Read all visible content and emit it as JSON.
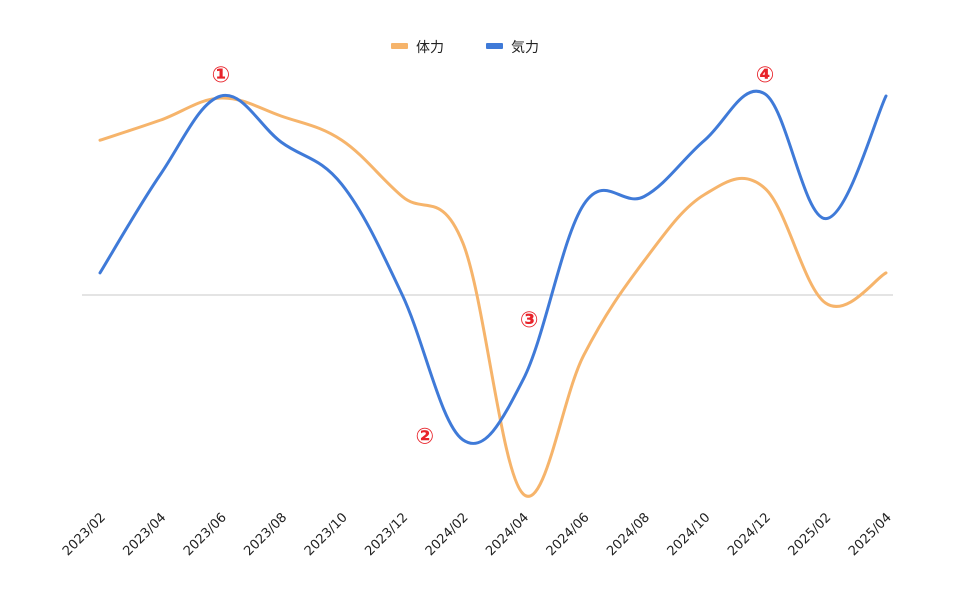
{
  "chart_data": {
    "type": "line",
    "title": "",
    "xlabel": "",
    "ylabel": "",
    "legend_position": "top-center",
    "grid": false,
    "baseline_value": 0,
    "ylim": [
      -1.0,
      1.0
    ],
    "x": [
      "2023/02",
      "2023/04",
      "2023/06",
      "2023/08",
      "2023/10",
      "2023/12",
      "2024/02",
      "2024/04",
      "2024/06",
      "2024/08",
      "2024/10",
      "2024/12",
      "2025/02",
      "2025/04"
    ],
    "series": [
      {
        "name": "体力",
        "color": "#f6b46b",
        "values": [
          0.77,
          0.87,
          0.98,
          0.89,
          0.77,
          0.49,
          0.26,
          -0.99,
          -0.3,
          0.17,
          0.5,
          0.53,
          -0.04,
          0.11
        ]
      },
      {
        "name": "気力",
        "color": "#3f7ad8",
        "values": [
          0.11,
          0.6,
          0.99,
          0.76,
          0.55,
          0.0,
          -0.72,
          -0.42,
          0.45,
          0.49,
          0.77,
          1.0,
          0.38,
          0.99
        ]
      }
    ],
    "annotations": [
      {
        "text": "①",
        "x": "2023/06",
        "y": 1.1
      },
      {
        "text": "②",
        "x": "2024/02",
        "y": -0.7
      },
      {
        "text": "③",
        "x": "2024/04",
        "y": -0.12
      },
      {
        "text": "④",
        "x": "2024/12",
        "y": 1.1
      }
    ]
  }
}
